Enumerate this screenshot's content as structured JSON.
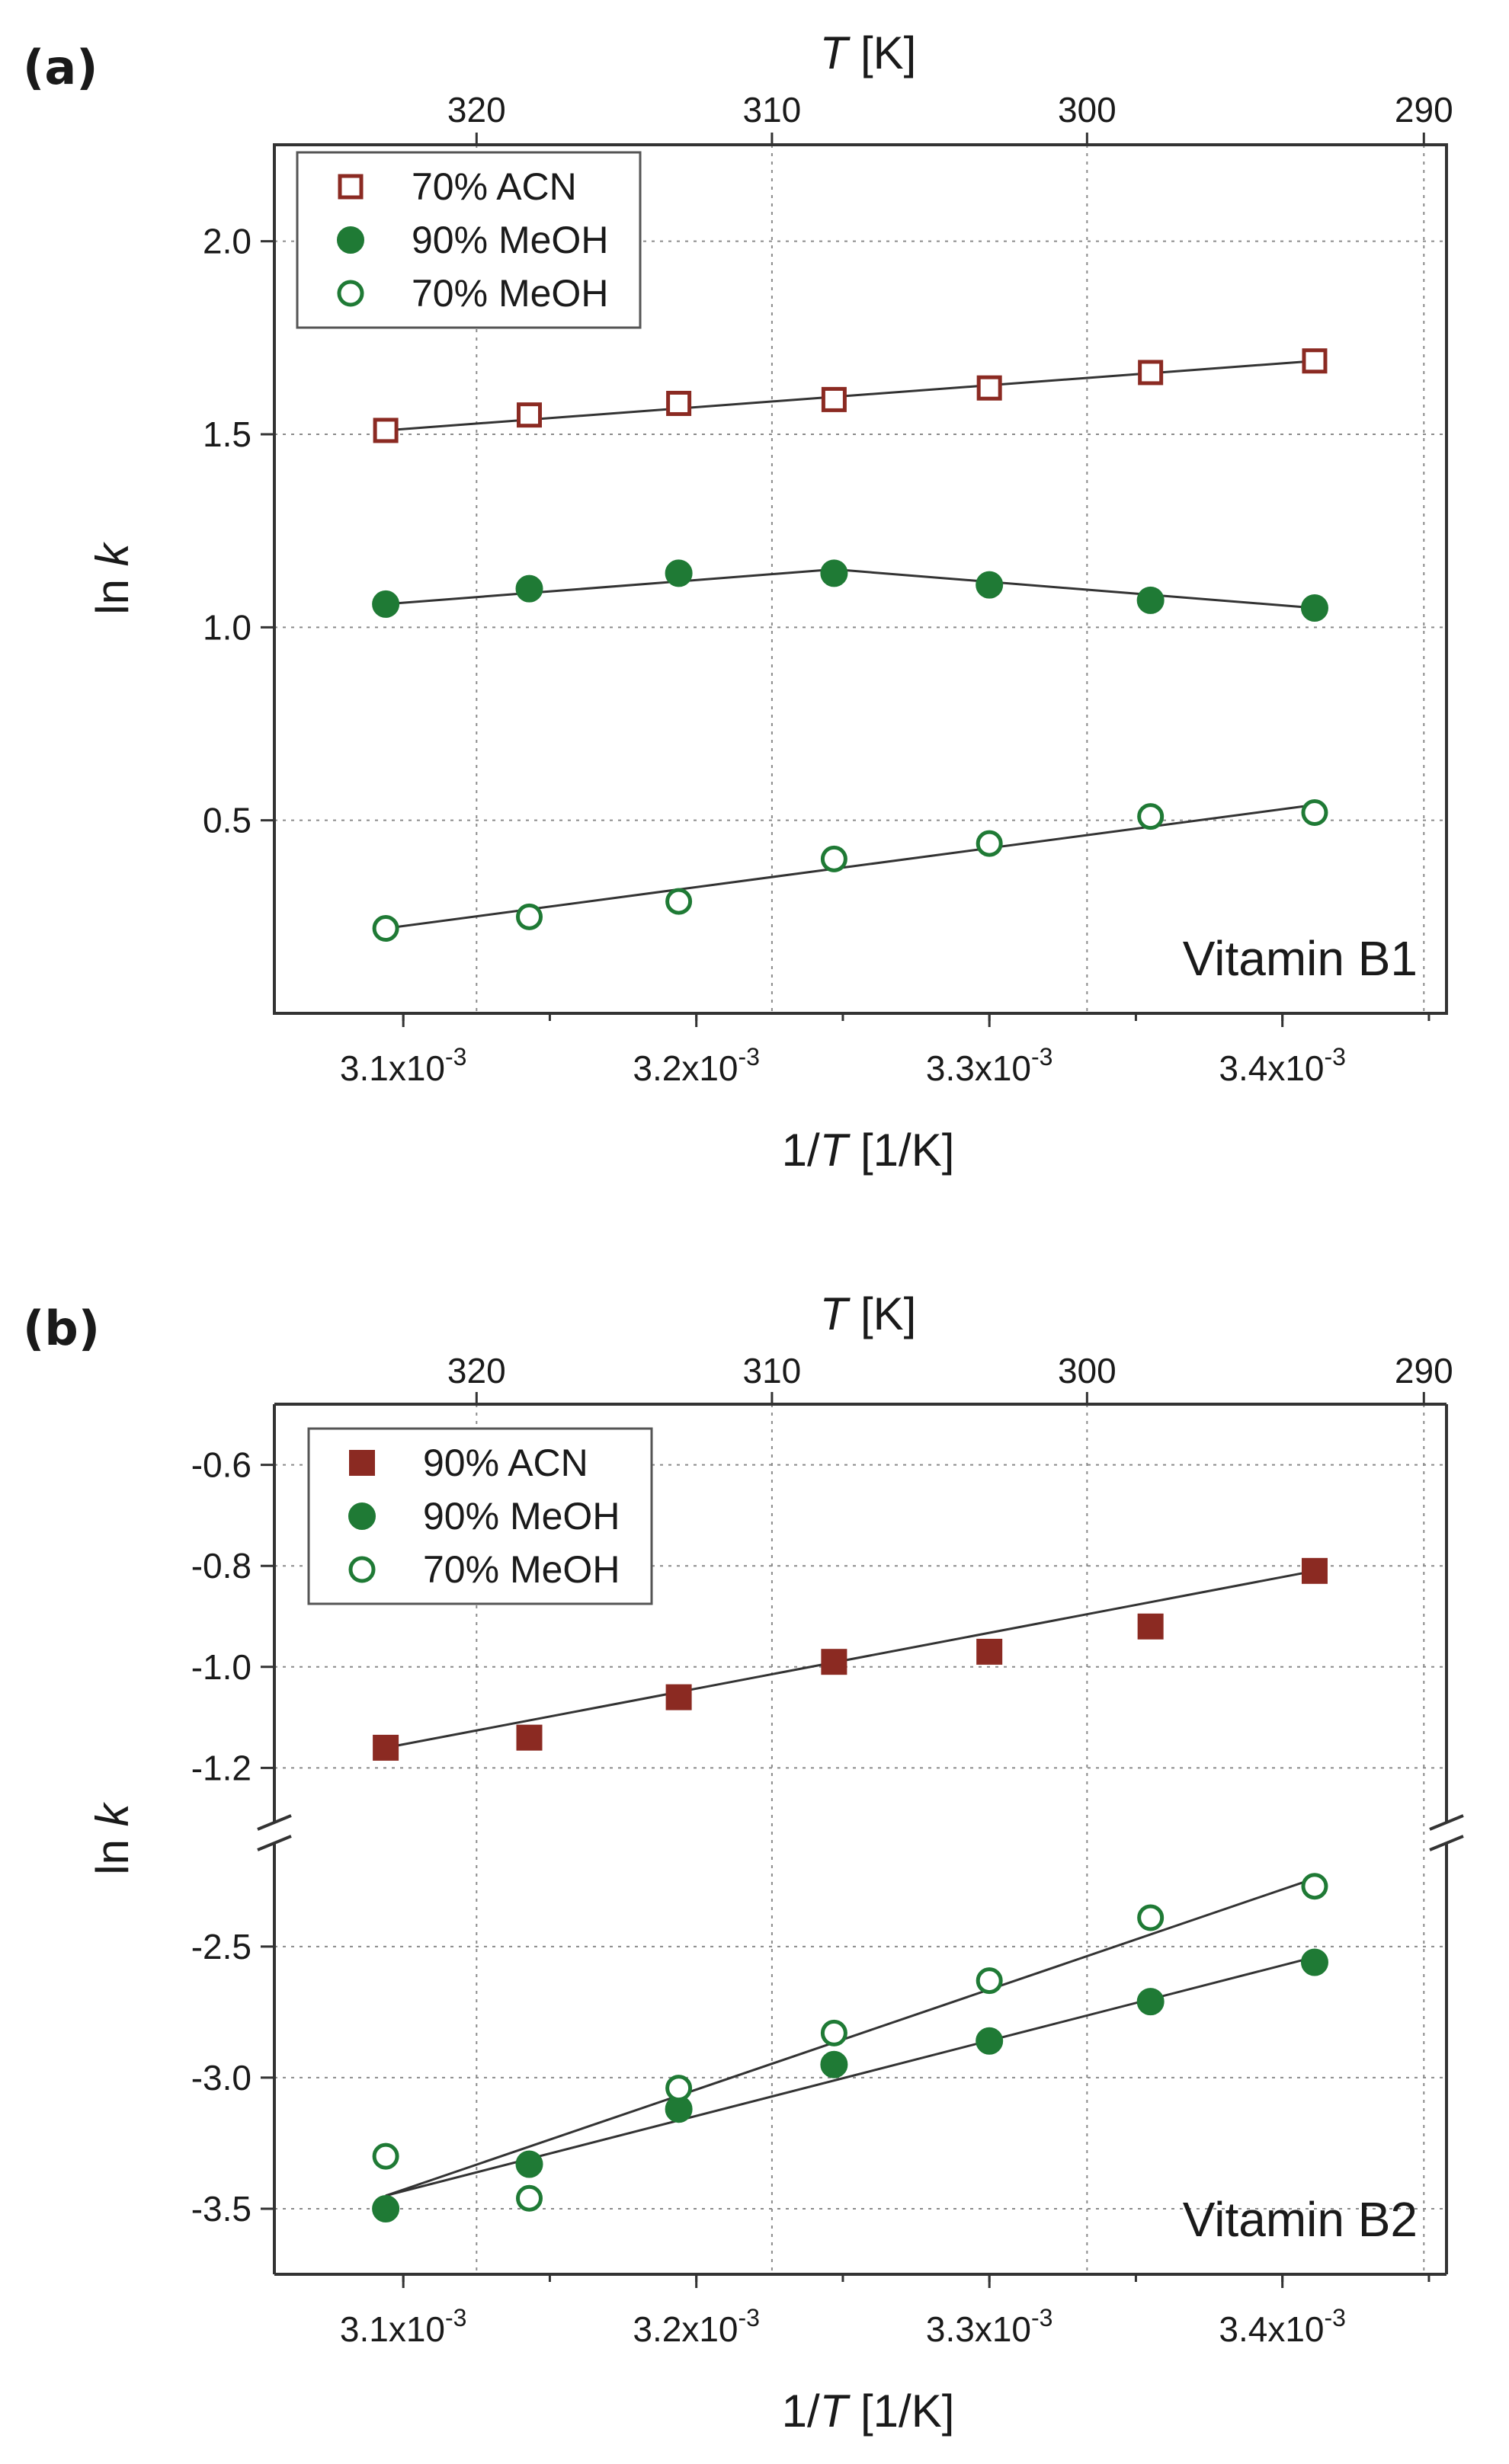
{
  "colors": {
    "acn": "#8b2a22",
    "meoh": "#1f7a35",
    "axis": "#333333",
    "grid": "#8a8a8a",
    "fit": "#333333"
  },
  "chart_data": [
    {
      "panel_label": "(a)",
      "type": "scatter",
      "title": "",
      "annotation": "Vitamin B1",
      "xlabel_prefix": "1/",
      "xlabel_var": "T",
      "xlabel_unit": " [1/K]",
      "ylabel_prefix": "ln ",
      "ylabel_var": "k",
      "top_xlabel_var": "T",
      "top_xlabel_unit": " [K]",
      "xlim": [
        0.003056,
        0.003456
      ],
      "xticks": [
        {
          "mant": "3.1x10",
          "exp": "-3",
          "value": 0.0031
        },
        {
          "mant": "3.2x10",
          "exp": "-3",
          "value": 0.0032
        },
        {
          "mant": "3.3x10",
          "exp": "-3",
          "value": 0.0033
        },
        {
          "mant": "3.4x10",
          "exp": "-3",
          "value": 0.0034
        }
      ],
      "top_ticks": [
        {
          "label": "320",
          "value": 320
        },
        {
          "label": "310",
          "value": 310
        },
        {
          "label": "300",
          "value": 300
        },
        {
          "label": "290",
          "value": 290
        }
      ],
      "ylim": [
        0.0,
        2.25
      ],
      "yticks": [
        {
          "label": "0.5",
          "value": 0.5
        },
        {
          "label": "1.0",
          "value": 1.0
        },
        {
          "label": "1.5",
          "value": 1.5
        },
        {
          "label": "2.0",
          "value": 2.0
        }
      ],
      "grid": true,
      "legend_position": "top-left",
      "series": [
        {
          "name": "70% ACN",
          "marker": "square-open",
          "color_key": "acn",
          "x": [
            0.003094,
            0.003143,
            0.003194,
            0.003247,
            0.0033,
            0.003355,
            0.003411
          ],
          "y": [
            1.51,
            1.55,
            1.58,
            1.59,
            1.62,
            1.66,
            1.69
          ],
          "fit": {
            "type": "linear",
            "points": [
              [
                0.003094,
                1.51
              ],
              [
                0.003411,
                1.69
              ]
            ]
          }
        },
        {
          "name": "90% MeOH",
          "marker": "circle-filled",
          "color_key": "meoh",
          "x": [
            0.003094,
            0.003143,
            0.003194,
            0.003247,
            0.0033,
            0.003355,
            0.003411
          ],
          "y": [
            1.06,
            1.1,
            1.14,
            1.14,
            1.11,
            1.07,
            1.05
          ],
          "fit": {
            "type": "polyline",
            "points": [
              [
                0.003094,
                1.06
              ],
              [
                0.003247,
                1.15
              ],
              [
                0.003411,
                1.05
              ]
            ]
          }
        },
        {
          "name": "70% MeOH",
          "marker": "circle-open",
          "color_key": "meoh",
          "x": [
            0.003094,
            0.003143,
            0.003194,
            0.003247,
            0.0033,
            0.003355,
            0.003411
          ],
          "y": [
            0.22,
            0.25,
            0.29,
            0.4,
            0.44,
            0.51,
            0.52
          ],
          "fit": {
            "type": "linear",
            "points": [
              [
                0.003094,
                0.22
              ],
              [
                0.003411,
                0.54
              ]
            ]
          }
        }
      ]
    },
    {
      "panel_label": "(b)",
      "type": "scatter",
      "title": "",
      "annotation": "Vitamin B2",
      "xlabel_prefix": "1/",
      "xlabel_var": "T",
      "xlabel_unit": " [1/K]",
      "ylabel_prefix": "ln ",
      "ylabel_var": "k",
      "top_xlabel_var": "T",
      "top_xlabel_unit": " [K]",
      "xlim": [
        0.003056,
        0.003456
      ],
      "xticks": [
        {
          "mant": "3.1x10",
          "exp": "-3",
          "value": 0.0031
        },
        {
          "mant": "3.2x10",
          "exp": "-3",
          "value": 0.0032
        },
        {
          "mant": "3.3x10",
          "exp": "-3",
          "value": 0.0033
        },
        {
          "mant": "3.4x10",
          "exp": "-3",
          "value": 0.0034
        }
      ],
      "top_ticks": [
        {
          "label": "320",
          "value": 320
        },
        {
          "label": "310",
          "value": 310
        },
        {
          "label": "300",
          "value": 300
        },
        {
          "label": "290",
          "value": 290
        }
      ],
      "broken_y_axis": true,
      "ylim_upper": [
        -1.32,
        -0.48
      ],
      "ylim_lower": [
        -3.75,
        -2.05
      ],
      "yticks": [
        {
          "label": "-0.6",
          "value": -0.6
        },
        {
          "label": "-0.8",
          "value": -0.8
        },
        {
          "label": "-1.0",
          "value": -1.0
        },
        {
          "label": "-1.2",
          "value": -1.2
        },
        {
          "label": "-2.5",
          "value": -2.5
        },
        {
          "label": "-3.0",
          "value": -3.0
        },
        {
          "label": "-3.5",
          "value": -3.5
        }
      ],
      "grid": true,
      "legend_position": "top-left",
      "series": [
        {
          "name": "90% ACN",
          "marker": "square-filled",
          "color_key": "acn",
          "x": [
            0.003094,
            0.003143,
            0.003194,
            0.003247,
            0.0033,
            0.003355,
            0.003411
          ],
          "y": [
            -1.16,
            -1.14,
            -1.06,
            -0.99,
            -0.97,
            -0.92,
            -0.81
          ],
          "fit": {
            "type": "linear",
            "points": [
              [
                0.003094,
                -1.16
              ],
              [
                0.003411,
                -0.81
              ]
            ]
          }
        },
        {
          "name": "90% MeOH",
          "marker": "circle-filled",
          "color_key": "meoh",
          "x": [
            0.003094,
            0.003143,
            0.003194,
            0.003247,
            0.0033,
            0.003355,
            0.003411
          ],
          "y": [
            -3.5,
            -3.33,
            -3.12,
            -2.95,
            -2.86,
            -2.71,
            -2.56
          ],
          "fit": {
            "type": "linear",
            "points": [
              [
                0.003094,
                -3.45
              ],
              [
                0.003411,
                -2.54
              ]
            ]
          }
        },
        {
          "name": "70% MeOH",
          "marker": "circle-open",
          "color_key": "meoh",
          "x": [
            0.003094,
            0.003143,
            0.003194,
            0.003247,
            0.0033,
            0.003355,
            0.003411
          ],
          "y": [
            -3.3,
            -3.46,
            -3.04,
            -2.83,
            -2.63,
            -2.39,
            -2.27
          ],
          "fit": {
            "type": "linear",
            "points": [
              [
                0.003094,
                -3.45
              ],
              [
                0.003411,
                -2.24
              ]
            ]
          }
        }
      ]
    }
  ]
}
